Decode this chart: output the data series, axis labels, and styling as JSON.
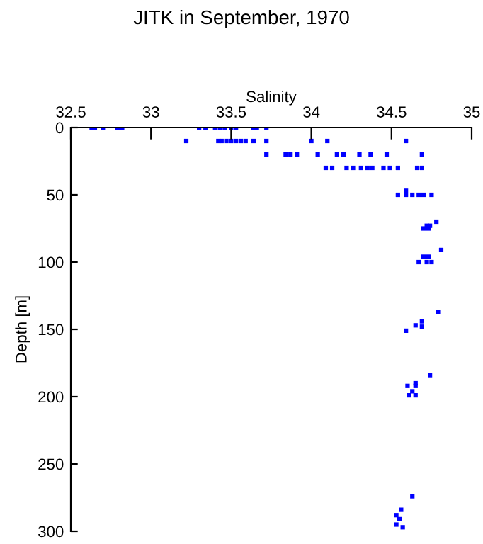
{
  "chart_data": {
    "type": "scatter",
    "title": "JITK in September, 1970",
    "xlabel": "Salinity",
    "ylabel": "Depth [m]",
    "xlim": [
      32.5,
      35
    ],
    "xticks": [
      32.5,
      33,
      33.5,
      34,
      34.5,
      35
    ],
    "ylim": [
      300,
      0
    ],
    "yticks": [
      0,
      50,
      100,
      150,
      200,
      250,
      300
    ],
    "grid": false,
    "legend": false,
    "marker": "square",
    "series": [
      {
        "color": "#0000ff",
        "x": [
          32.63,
          32.65,
          32.7,
          32.79,
          32.81,
          32.82,
          33.3,
          33.34,
          33.4,
          33.43,
          33.46,
          33.5,
          33.53,
          33.64,
          33.66,
          33.72,
          33.22,
          33.42,
          33.44,
          33.47,
          33.5,
          33.53,
          33.56,
          33.59,
          33.64,
          33.72,
          34.0,
          34.1,
          34.59,
          33.72,
          33.84,
          33.87,
          33.91,
          34.04,
          34.16,
          34.2,
          34.3,
          34.37,
          34.47,
          34.69,
          34.09,
          34.13,
          34.22,
          34.26,
          34.31,
          34.35,
          34.38,
          34.45,
          34.49,
          34.54,
          34.66,
          34.69,
          34.59,
          34.54,
          34.59,
          34.63,
          34.67,
          34.7,
          34.75,
          34.78,
          34.72,
          34.74,
          34.7,
          34.73,
          34.81,
          34.7,
          34.73,
          34.67,
          34.72,
          34.75,
          34.79,
          34.69,
          34.69,
          34.65,
          34.59,
          34.74,
          34.65,
          34.6,
          34.65,
          34.63,
          34.61,
          34.65,
          34.63,
          34.56,
          34.53,
          34.55,
          34.53,
          34.57
        ],
        "values": [
          0,
          0,
          0,
          0,
          0,
          0,
          0,
          0,
          0,
          0,
          0,
          0,
          0,
          0,
          0,
          0,
          10,
          10,
          10,
          10,
          10,
          10,
          10,
          10,
          10,
          10,
          10,
          10,
          10,
          20,
          20,
          20,
          20,
          20,
          20,
          20,
          20,
          20,
          20,
          20,
          30,
          30,
          30,
          30,
          30,
          30,
          30,
          30,
          30,
          30,
          30,
          30,
          47,
          50,
          50,
          50,
          50,
          50,
          50,
          70,
          73,
          73,
          75,
          75,
          91,
          96,
          96,
          100,
          100,
          100,
          137,
          144,
          148,
          147,
          151,
          184,
          190,
          192,
          192,
          196,
          199,
          199,
          274,
          284,
          288,
          291,
          295,
          297
        ]
      }
    ]
  }
}
